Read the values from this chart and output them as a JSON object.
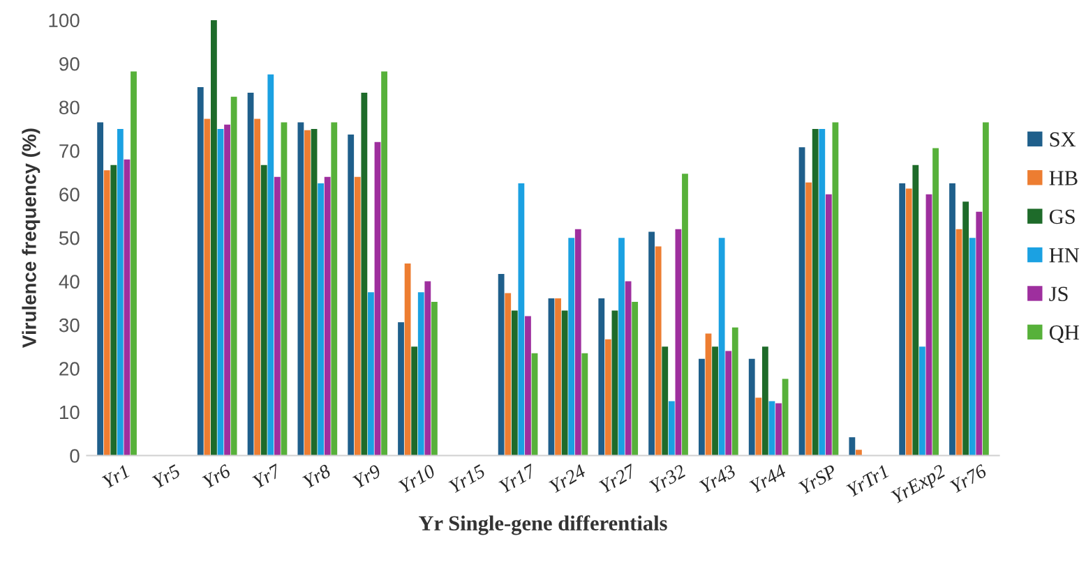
{
  "chart_data": {
    "type": "bar",
    "xlabel": "Yr Single-gene differentials",
    "ylabel": "Virulence frequency (%)",
    "categories": [
      "Yr1",
      "Yr5",
      "Yr6",
      "Yr7",
      "Yr8",
      "Yr9",
      "Yr10",
      "Yr15",
      "Yr17",
      "Yr24",
      "Yr27",
      "Yr32",
      "Yr43",
      "Yr44",
      "YrSP",
      "YrTr1",
      "YrExp2",
      "Yr76"
    ],
    "series": [
      {
        "name": "SX",
        "color": "#1f5f8b",
        "values": [
          76.5,
          0,
          84.6,
          83.3,
          76.5,
          73.7,
          30.6,
          0,
          41.7,
          36.1,
          36.1,
          51.4,
          22.2,
          22.2,
          70.8,
          4.2,
          62.5,
          62.5
        ]
      },
      {
        "name": "HB",
        "color": "#ed7d31",
        "values": [
          65.5,
          0,
          77.3,
          77.3,
          74.7,
          64,
          44.1,
          0,
          37.3,
          36.1,
          26.7,
          48,
          28,
          13.3,
          62.7,
          1.3,
          61.3,
          52
        ]
      },
      {
        "name": "GS",
        "color": "#1e6b2a",
        "values": [
          66.7,
          0,
          100,
          66.7,
          75,
          83.3,
          25,
          0,
          33.3,
          33.3,
          33.3,
          25,
          25,
          25,
          75,
          0,
          66.7,
          58.3
        ]
      },
      {
        "name": "HN",
        "color": "#1ba1e2",
        "values": [
          75,
          0,
          75,
          87.5,
          62.5,
          37.5,
          37.5,
          0,
          62.5,
          50,
          50,
          12.5,
          50,
          12.5,
          75,
          0,
          25,
          50
        ]
      },
      {
        "name": "JS",
        "color": "#9e2f9e",
        "values": [
          68,
          0,
          76,
          64,
          64,
          72,
          40,
          0,
          32,
          52,
          40,
          52,
          24,
          12,
          60,
          0,
          60,
          56
        ]
      },
      {
        "name": "QH",
        "color": "#57b13a",
        "values": [
          88.2,
          0,
          82.4,
          76.5,
          76.5,
          88.2,
          35.3,
          0,
          23.5,
          23.5,
          35.3,
          64.7,
          29.4,
          17.6,
          76.5,
          0,
          70.6,
          76.5
        ]
      }
    ],
    "ylim": [
      0,
      100
    ],
    "yticks": [
      0,
      10,
      20,
      30,
      40,
      50,
      60,
      70,
      80,
      90,
      100
    ],
    "grid": false,
    "legend": "right"
  }
}
